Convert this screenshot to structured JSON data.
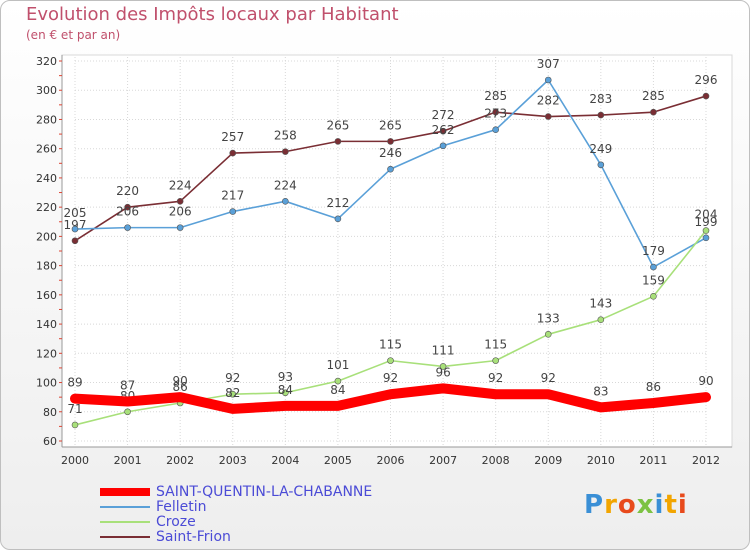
{
  "header": {
    "title": "Evolution des Impôts locaux par Habitant",
    "subtitle": "(en € et par an)"
  },
  "chart_data": {
    "type": "line",
    "title": "Evolution des Impôts locaux par Habitant",
    "subtitle": "(en € et par an)",
    "xlabel": "",
    "ylabel": "",
    "categories": [
      "2000",
      "2001",
      "2002",
      "2003",
      "2004",
      "2005",
      "2006",
      "2007",
      "2008",
      "2009",
      "2010",
      "2011",
      "2012"
    ],
    "ylim": [
      60,
      320
    ],
    "yticks": [
      60,
      80,
      100,
      120,
      140,
      160,
      180,
      200,
      220,
      240,
      260,
      280,
      300,
      320
    ],
    "grid": true,
    "legend_position": "bottom-left",
    "series": [
      {
        "name": "SAINT-QUENTIN-LA-CHABANNE",
        "color": "#ff0000",
        "values": [
          89,
          87,
          90,
          82,
          84,
          84,
          92,
          96,
          92,
          92,
          83,
          86,
          90
        ]
      },
      {
        "name": "Felletin",
        "color": "#5aa0d8",
        "values": [
          205,
          206,
          206,
          217,
          224,
          212,
          246,
          262,
          273,
          307,
          249,
          179,
          199
        ]
      },
      {
        "name": "Croze",
        "color": "#a8e07a",
        "values": [
          71,
          80,
          86,
          92,
          93,
          101,
          115,
          111,
          115,
          133,
          143,
          159,
          204
        ]
      },
      {
        "name": "Saint-Frion",
        "color": "#7a2e34",
        "values": [
          197,
          220,
          224,
          257,
          258,
          265,
          265,
          272,
          285,
          282,
          283,
          285,
          296
        ]
      }
    ]
  },
  "branding": {
    "logo_letters": [
      "P",
      "r",
      "o",
      "x",
      "i",
      "t",
      "i"
    ],
    "logo_colors": [
      "#3a8fd6",
      "#f2a500",
      "#e84a1c",
      "#7cc242",
      "#3a8fd6",
      "#f2a500",
      "#e84a1c"
    ]
  }
}
